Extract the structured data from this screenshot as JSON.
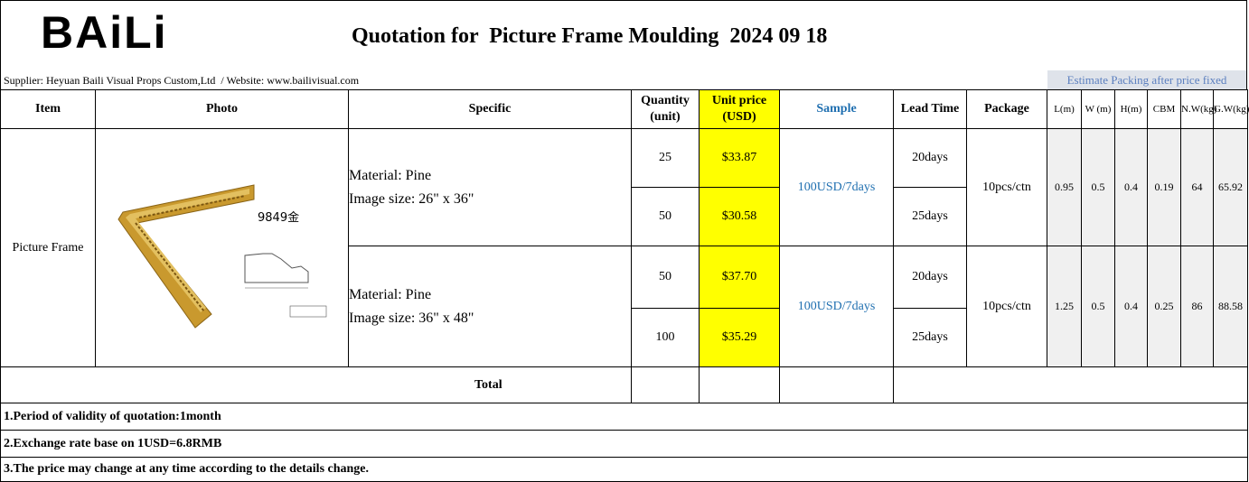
{
  "header": {
    "logo": "BAiLi",
    "title": "Quotation for  Picture Frame Moulding  2024 09 18",
    "supplier": "Supplier: Heyuan Baili Visual Props Custom,Ltd  / Website: www.bailivisual.com",
    "packing_note": "Estimate Packing after price fixed"
  },
  "table": {
    "columns": [
      "Item",
      "Photo",
      "Specific",
      "Quantity (unit)",
      "Unit price (USD)",
      "Sample",
      "Lead Time",
      "Package",
      "L(m)",
      "W (m)",
      "H(m)",
      "CBM",
      "N.W(kg)",
      "G.W(kg)"
    ],
    "item": "Picture Frame",
    "photo_label": "9849金",
    "products": [
      {
        "material": "Material: Pine",
        "size": "Image size: 26\" x 36\"",
        "sample": "100USD/7days",
        "package": "10pcs/ctn",
        "dims": [
          0.95,
          0.5,
          0.4,
          0.19,
          64,
          65.92
        ],
        "rows": [
          {
            "qty": 25,
            "price": "$33.87",
            "lead": "20days"
          },
          {
            "qty": 50,
            "price": "$30.58",
            "lead": "25days"
          }
        ]
      },
      {
        "material": "Material: Pine",
        "size": "Image size: 36\" x 48\"",
        "sample": "100USD/7days",
        "package": "10pcs/ctn",
        "dims": [
          1.25,
          0.5,
          0.4,
          0.25,
          86,
          88.58
        ],
        "rows": [
          {
            "qty": 50,
            "price": "$37.70",
            "lead": "20days"
          },
          {
            "qty": 100,
            "price": "$35.29",
            "lead": "25days"
          }
        ]
      }
    ],
    "total": "Total"
  },
  "notes": [
    "1.Period of validity of quotation:1month",
    "2.Exchange rate base on 1USD=6.8RMB",
    "3.The price may change at any time according to the details change."
  ]
}
